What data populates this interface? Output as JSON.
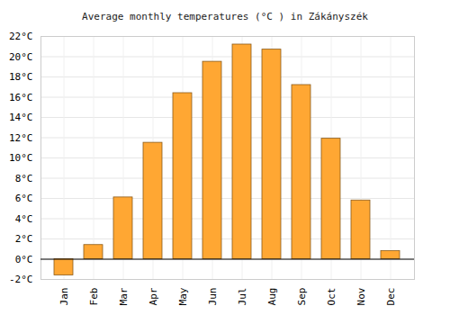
{
  "chart_data": {
    "type": "bar",
    "title": "Average monthly temperatures (°C ) in Zákányszék",
    "categories": [
      "Jan",
      "Feb",
      "Mar",
      "Apr",
      "May",
      "Jun",
      "Jul",
      "Aug",
      "Sep",
      "Oct",
      "Nov",
      "Dec"
    ],
    "values": [
      -1.6,
      1.4,
      6.1,
      11.5,
      16.4,
      19.5,
      21.2,
      20.7,
      17.2,
      11.9,
      5.8,
      0.8
    ],
    "color": "#ffa733",
    "ylim": [
      -2,
      22
    ],
    "yticks": [
      {
        "value": -2,
        "label": "-2°C"
      },
      {
        "value": 0,
        "label": "0°C"
      },
      {
        "value": 2,
        "label": "2°C"
      },
      {
        "value": 4,
        "label": "4°C"
      },
      {
        "value": 6,
        "label": "6°C"
      },
      {
        "value": 8,
        "label": "8°C"
      },
      {
        "value": 10,
        "label": "10°C"
      },
      {
        "value": 12,
        "label": "12°C"
      },
      {
        "value": 14,
        "label": "14°C"
      },
      {
        "value": 16,
        "label": "16°C"
      },
      {
        "value": 18,
        "label": "18°C"
      },
      {
        "value": 20,
        "label": "20°C"
      },
      {
        "value": 22,
        "label": "22°C"
      }
    ],
    "grid": true
  }
}
